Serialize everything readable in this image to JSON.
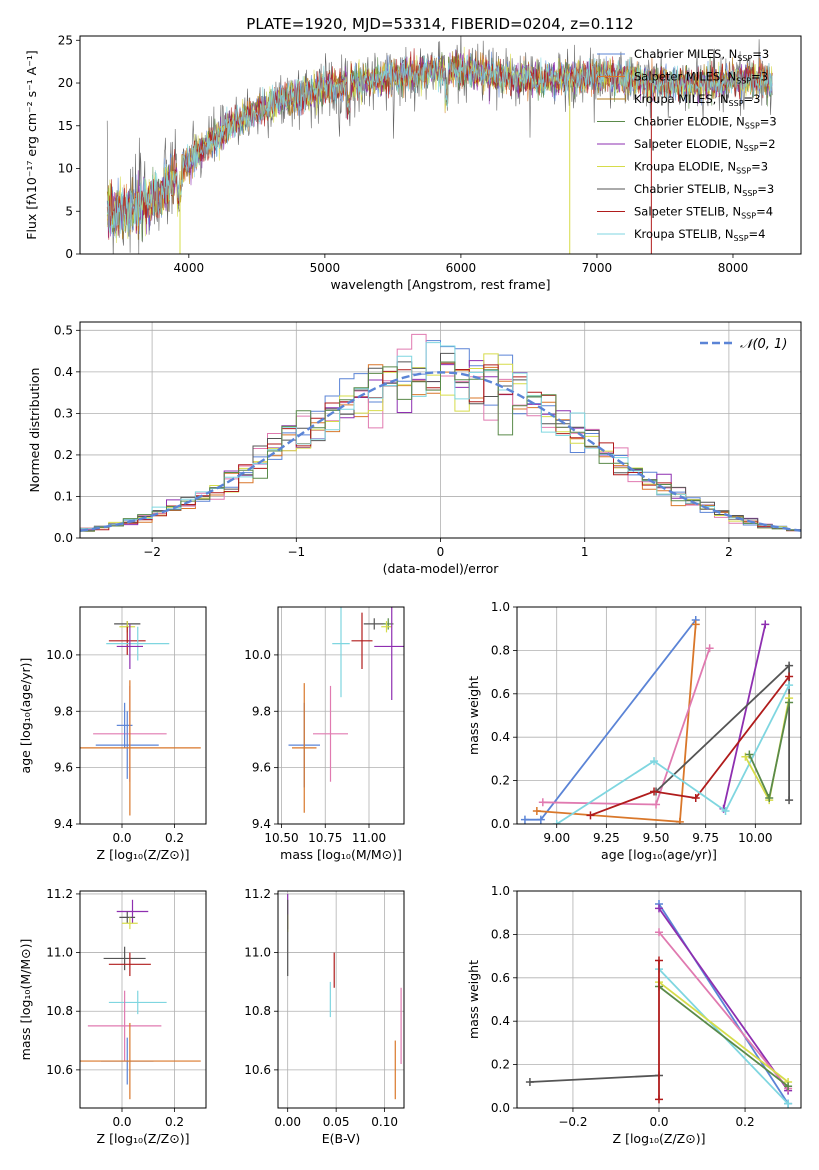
{
  "figure": {
    "title": "PLATE=1920, MJD=53314, FIBERID=0204, z=0.112"
  },
  "colors": {
    "blue": "#5b84d6",
    "orange": "#d9772a",
    "olive": "#b07a18",
    "green": "#5a8a4a",
    "purple": "#8e2fb0",
    "yellow": "#d6dc4a",
    "gray": "#555555",
    "red": "#b01c1c",
    "cyan": "#7fd6e0",
    "pink": "#e07ab0",
    "gauss": "#5b84d6"
  },
  "chart_data": [
    {
      "id": "spectrum",
      "type": "line",
      "xlabel": "wavelength [Angstrom, rest frame]",
      "ylabel": "Flux [fλ10⁻¹⁷ erg cm⁻² s⁻¹ A⁻¹]",
      "xlim": [
        3200,
        8500
      ],
      "ylim": [
        0,
        25.5
      ],
      "xticks": [
        "4000",
        "5000",
        "6000",
        "7000",
        "8000"
      ],
      "yticks": [
        "0",
        "5",
        "10",
        "15",
        "20",
        "25"
      ],
      "grid": false,
      "legend_position": "top-right",
      "continuum_x": [
        3400,
        3500,
        3600,
        3700,
        3800,
        3900,
        4000,
        4200,
        4400,
        4600,
        4800,
        5000,
        5200,
        5400,
        5600,
        5800,
        6000,
        6200,
        6400,
        6600,
        6800,
        7000,
        7200,
        7400,
        7600,
        7800,
        8000,
        8200,
        8300
      ],
      "continuum_y": [
        5,
        4.8,
        5.5,
        6,
        7,
        9,
        11,
        13.5,
        16,
        17.5,
        18.5,
        19.3,
        20,
        20.5,
        21,
        21.5,
        21.5,
        21,
        20.5,
        20.5,
        20.5,
        20.8,
        20.5,
        20,
        20,
        20,
        20.3,
        20.5,
        20
      ],
      "legend": [
        {
          "label": "Chabrier MILES, N",
          "sub": "SSP",
          "suffix": "=3",
          "color": "blue"
        },
        {
          "label": "Salpeter MILES, N",
          "sub": "SSP",
          "suffix": "=3",
          "color": "orange"
        },
        {
          "label": "Kroupa MILES, N",
          "sub": "SSP",
          "suffix": "=3",
          "color": "olive"
        },
        {
          "label": "Chabrier ELODIE, N",
          "sub": "SSP",
          "suffix": "=3",
          "color": "green"
        },
        {
          "label": "Salpeter ELODIE, N",
          "sub": "SSP",
          "suffix": "=2",
          "color": "purple"
        },
        {
          "label": "Kroupa ELODIE, N",
          "sub": "SSP",
          "suffix": "=3",
          "color": "yellow"
        },
        {
          "label": "Chabrier STELIB, N",
          "sub": "SSP",
          "suffix": "=3",
          "color": "gray"
        },
        {
          "label": "Salpeter STELIB, N",
          "sub": "SSP",
          "suffix": "=4",
          "color": "red"
        },
        {
          "label": "Kroupa STELIB, N",
          "sub": "SSP",
          "suffix": "=4",
          "color": "cyan"
        }
      ]
    },
    {
      "id": "residuals",
      "type": "histogram",
      "xlabel": "(data-model)/error",
      "ylabel": "Normed distribution",
      "xlim": [
        -2.5,
        2.5
      ],
      "ylim": [
        0,
        0.52
      ],
      "xticks": [
        {
          "v": -2,
          "t": "−2"
        },
        {
          "v": -1,
          "t": "−1"
        },
        {
          "v": 0,
          "t": "0"
        },
        {
          "v": 1,
          "t": "1"
        },
        {
          "v": 2,
          "t": "2"
        }
      ],
      "yticks": [
        "0.0",
        "0.1",
        "0.2",
        "0.3",
        "0.4",
        "0.5"
      ],
      "grid": true,
      "legend_position": "top-right",
      "gauss_label": "𝒩(0, 1)",
      "bin_width": 0.1
    },
    {
      "id": "age_vs_z",
      "type": "scatter",
      "xlabel": "Z [log₁₀(Z/Z⊙)]",
      "ylabel": "age  [log₁₀(age/yr)]",
      "xlim": [
        -0.16,
        0.32
      ],
      "ylim": [
        9.4,
        10.17
      ],
      "xticks": [
        {
          "v": 0,
          "t": "0.0"
        },
        {
          "v": 0.2,
          "t": "0.2"
        }
      ],
      "yticks": [
        {
          "v": 9.4,
          "t": "9.4"
        },
        {
          "v": 9.6,
          "t": "9.6"
        },
        {
          "v": 9.8,
          "t": "9.8"
        },
        {
          "v": 10.0,
          "t": "10.0"
        }
      ],
      "points": [
        {
          "x": 0.02,
          "y": 10.11,
          "ex": 0.05,
          "ey": 0.01,
          "color": "gray"
        },
        {
          "x": 0.02,
          "y": 10.1,
          "ex": 0.03,
          "ey": 0.02,
          "color": "yellow"
        },
        {
          "x": 0.02,
          "y": 10.05,
          "ex": 0.07,
          "ey": 0.05,
          "color": "red"
        },
        {
          "x": 0.06,
          "y": 10.04,
          "ex": 0.12,
          "ey": 0.06,
          "color": "cyan"
        },
        {
          "x": 0.03,
          "y": 10.03,
          "ex": 0.05,
          "ey": 0.08,
          "color": "purple"
        },
        {
          "x": 0.03,
          "y": 9.72,
          "ex": 0.14,
          "ey": 0.17,
          "color": "pink"
        },
        {
          "x": 0.01,
          "y": 9.75,
          "ex": 0.03,
          "ey": 0.08,
          "color": "blue"
        },
        {
          "x": 0.02,
          "y": 9.68,
          "ex": 0.12,
          "ey": 0.12,
          "color": "blue"
        },
        {
          "x": 0.03,
          "y": 9.67,
          "ex": 0.27,
          "ey": 0.24,
          "color": "orange"
        }
      ]
    },
    {
      "id": "age_vs_mass",
      "type": "scatter",
      "xlabel": "mass [log₁₀(M/M⊙)]",
      "ylabel": "",
      "xlim": [
        10.48,
        11.2
      ],
      "ylim": [
        9.4,
        10.17
      ],
      "xticks": [
        {
          "v": 10.5,
          "t": "10.50"
        },
        {
          "v": 10.75,
          "t": "10.75"
        },
        {
          "v": 11.0,
          "t": "11.00"
        }
      ],
      "yticks": [
        {
          "v": 9.4,
          "t": "9.4"
        },
        {
          "v": 9.6,
          "t": "9.6"
        },
        {
          "v": 9.8,
          "t": "9.8"
        },
        {
          "v": 10.0,
          "t": "10.0"
        }
      ],
      "points": [
        {
          "x": 11.03,
          "y": 10.11,
          "ex": 0.06,
          "ey": 0.02,
          "color": "gray"
        },
        {
          "x": 11.11,
          "y": 10.11,
          "ex": 0.03,
          "ey": 0.02,
          "color": "green"
        },
        {
          "x": 11.1,
          "y": 10.1,
          "ex": 0.03,
          "ey": 0.02,
          "color": "yellow"
        },
        {
          "x": 10.96,
          "y": 10.05,
          "ex": 0.06,
          "ey": 0.1,
          "color": "red"
        },
        {
          "x": 10.84,
          "y": 10.04,
          "ex": 0.05,
          "ey": 0.19,
          "color": "cyan"
        },
        {
          "x": 11.13,
          "y": 10.03,
          "ex": 0.1,
          "ey": 0.19,
          "color": "purple"
        },
        {
          "x": 10.78,
          "y": 9.72,
          "ex": 0.1,
          "ey": 0.17,
          "color": "pink"
        },
        {
          "x": 10.63,
          "y": 9.68,
          "ex": 0.09,
          "ey": 0.15,
          "color": "blue"
        },
        {
          "x": 10.63,
          "y": 9.67,
          "ex": 0.07,
          "ey": 0.23,
          "color": "orange"
        }
      ]
    },
    {
      "id": "weight_vs_age",
      "type": "line",
      "xlabel": "age  [log₁₀(age/yr)]",
      "ylabel": "mass weight",
      "xlim": [
        8.8,
        10.23
      ],
      "ylim": [
        0,
        1
      ],
      "xticks": [
        {
          "v": 9.0,
          "t": "9.00"
        },
        {
          "v": 9.25,
          "t": "9.25"
        },
        {
          "v": 9.5,
          "t": "9.50"
        },
        {
          "v": 9.75,
          "t": "9.75"
        },
        {
          "v": 10.0,
          "t": "10.00"
        }
      ],
      "yticks": [
        {
          "v": 0,
          "t": "0.0"
        },
        {
          "v": 0.2,
          "t": "0.2"
        },
        {
          "v": 0.4,
          "t": "0.4"
        },
        {
          "v": 0.6,
          "t": "0.6"
        },
        {
          "v": 0.8,
          "t": "0.8"
        },
        {
          "v": 1.0,
          "t": "1.0"
        }
      ],
      "series": [
        {
          "color": "blue",
          "x": [
            8.84,
            8.92,
            9.7
          ],
          "y": [
            0.02,
            0.02,
            0.94
          ]
        },
        {
          "color": "orange",
          "x": [
            8.9,
            9.62,
            9.7
          ],
          "y": [
            0.06,
            0.01,
            0.92
          ]
        },
        {
          "color": "pink",
          "x": [
            8.93,
            9.5,
            9.77
          ],
          "y": [
            0.1,
            0.09,
            0.81
          ]
        },
        {
          "color": "purple",
          "x": [
            9.84,
            10.05
          ],
          "y": [
            0.07,
            0.92
          ]
        },
        {
          "color": "gray",
          "x": [
            9.5,
            10.17,
            10.17
          ],
          "y": [
            0.15,
            0.73,
            0.11
          ]
        },
        {
          "color": "red",
          "x": [
            9.17,
            9.49,
            9.7,
            10.17
          ],
          "y": [
            0.04,
            0.15,
            0.12,
            0.68
          ]
        },
        {
          "color": "cyan",
          "x": [
            9.0,
            9.49,
            9.85,
            10.17
          ],
          "y": [
            0.0,
            0.29,
            0.06,
            0.64
          ]
        },
        {
          "color": "yellow",
          "x": [
            9.95,
            10.07,
            10.17
          ],
          "y": [
            0.31,
            0.11,
            0.58
          ]
        },
        {
          "color": "green",
          "x": [
            9.97,
            10.07,
            10.17
          ],
          "y": [
            0.32,
            0.12,
            0.56
          ]
        }
      ]
    },
    {
      "id": "mass_vs_z",
      "type": "scatter",
      "xlabel": "Z [log₁₀(Z/Z⊙)]",
      "ylabel": "mass [log₁₀(M/M⊙)]",
      "xlim": [
        -0.16,
        0.32
      ],
      "ylim": [
        10.47,
        11.21
      ],
      "xticks": [
        {
          "v": 0,
          "t": "0.0"
        },
        {
          "v": 0.2,
          "t": "0.2"
        }
      ],
      "yticks": [
        {
          "v": 10.6,
          "t": "10.6"
        },
        {
          "v": 10.8,
          "t": "10.8"
        },
        {
          "v": 11.0,
          "t": "11.0"
        },
        {
          "v": 11.2,
          "t": "11.2"
        }
      ],
      "points": [
        {
          "x": 0.04,
          "y": 11.14,
          "ex": 0.06,
          "ey": 0.04,
          "color": "purple"
        },
        {
          "x": 0.02,
          "y": 11.12,
          "ex": 0.03,
          "ey": 0.02,
          "color": "gray"
        },
        {
          "x": 0.03,
          "y": 11.1,
          "ex": 0.03,
          "ey": 0.02,
          "color": "yellow"
        },
        {
          "x": 0.01,
          "y": 10.98,
          "ex": 0.08,
          "ey": 0.04,
          "color": "gray"
        },
        {
          "x": 0.03,
          "y": 10.96,
          "ex": 0.08,
          "ey": 0.04,
          "color": "red"
        },
        {
          "x": 0.06,
          "y": 10.83,
          "ex": 0.11,
          "ey": 0.04,
          "color": "cyan"
        },
        {
          "x": 0.01,
          "y": 10.75,
          "ex": 0.14,
          "ey": 0.12,
          "color": "pink"
        },
        {
          "x": 0.02,
          "y": 10.63,
          "ex": 0.1,
          "ey": 0.08,
          "color": "blue"
        },
        {
          "x": 0.03,
          "y": 10.63,
          "ex": 0.27,
          "ey": 0.13,
          "color": "orange"
        }
      ]
    },
    {
      "id": "mass_vs_ebv",
      "type": "scatter",
      "xlabel": "E(B-V)",
      "ylabel": "",
      "xlim": [
        -0.01,
        0.12
      ],
      "ylim": [
        10.47,
        11.21
      ],
      "xticks": [
        {
          "v": 0,
          "t": "0.00"
        },
        {
          "v": 0.05,
          "t": "0.05"
        },
        {
          "v": 0.1,
          "t": "0.10"
        }
      ],
      "yticks": [
        {
          "v": 10.6,
          "t": "10.6"
        },
        {
          "v": 10.8,
          "t": "10.8"
        },
        {
          "v": 11.0,
          "t": "11.0"
        },
        {
          "v": 11.2,
          "t": "11.2"
        }
      ],
      "points": [
        {
          "x": 0.0,
          "y": 11.14,
          "ex": 0,
          "ey": 0.06,
          "color": "purple"
        },
        {
          "x": 0.0,
          "y": 11.1,
          "ex": 0,
          "ey": 0.03,
          "color": "yellow"
        },
        {
          "x": 0.0,
          "y": 11.05,
          "ex": 0,
          "ey": 0.13,
          "color": "gray"
        },
        {
          "x": 0.048,
          "y": 10.94,
          "ex": 0,
          "ey": 0.06,
          "color": "red"
        },
        {
          "x": 0.044,
          "y": 10.84,
          "ex": 0,
          "ey": 0.06,
          "color": "cyan"
        },
        {
          "x": 0.117,
          "y": 10.75,
          "ex": 0,
          "ey": 0.13,
          "color": "pink"
        },
        {
          "x": 0.111,
          "y": 10.6,
          "ex": 0,
          "ey": 0.1,
          "color": "orange"
        }
      ]
    },
    {
      "id": "weight_vs_z",
      "type": "line",
      "xlabel": "Z [log₁₀(Z/Z⊙)]",
      "ylabel": "mass weight",
      "xlim": [
        -0.33,
        0.33
      ],
      "ylim": [
        0,
        1
      ],
      "xticks": [
        {
          "v": -0.2,
          "t": "−0.2"
        },
        {
          "v": 0,
          "t": "0.0"
        },
        {
          "v": 0.2,
          "t": "0.2"
        }
      ],
      "yticks": [
        {
          "v": 0,
          "t": "0.0"
        },
        {
          "v": 0.2,
          "t": "0.2"
        },
        {
          "v": 0.4,
          "t": "0.4"
        },
        {
          "v": 0.6,
          "t": "0.6"
        },
        {
          "v": 0.8,
          "t": "0.8"
        },
        {
          "v": 1.0,
          "t": "1.0"
        }
      ],
      "series": [
        {
          "color": "blue",
          "x": [
            0.0,
            0.3
          ],
          "y": [
            0.94,
            0.02
          ]
        },
        {
          "color": "purple",
          "x": [
            0.0,
            0.3
          ],
          "y": [
            0.92,
            0.08
          ]
        },
        {
          "color": "pink",
          "x": [
            0.0,
            0.3
          ],
          "y": [
            0.81,
            0.09
          ]
        },
        {
          "color": "cyan",
          "x": [
            0.0,
            0.3
          ],
          "y": [
            0.64,
            0.02
          ]
        },
        {
          "color": "yellow",
          "x": [
            0.0,
            0.3
          ],
          "y": [
            0.58,
            0.12
          ]
        },
        {
          "color": "green",
          "x": [
            0.0,
            0.3
          ],
          "y": [
            0.56,
            0.1
          ]
        },
        {
          "color": "gray",
          "x": [
            -0.3,
            0.0
          ],
          "y": [
            0.12,
            0.15
          ]
        },
        {
          "color": "red",
          "x": [
            0.0,
            0.0
          ],
          "y": [
            0.04,
            0.68
          ]
        }
      ]
    }
  ]
}
